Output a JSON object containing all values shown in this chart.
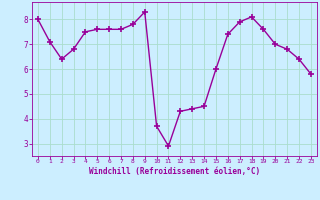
{
  "x": [
    0,
    1,
    2,
    3,
    4,
    5,
    6,
    7,
    8,
    9,
    10,
    11,
    12,
    13,
    14,
    15,
    16,
    17,
    18,
    19,
    20,
    21,
    22,
    23
  ],
  "y": [
    8.0,
    7.1,
    6.4,
    6.8,
    7.5,
    7.6,
    7.6,
    7.6,
    7.8,
    8.3,
    3.7,
    2.9,
    4.3,
    4.4,
    4.5,
    6.0,
    7.4,
    7.9,
    8.1,
    7.6,
    7.0,
    6.8,
    6.4,
    5.8
  ],
  "line_color": "#990099",
  "marker": "+",
  "markersize": 4,
  "linewidth": 1.0,
  "bg_color": "#cceeff",
  "grid_color": "#aaddcc",
  "xlabel": "Windchill (Refroidissement éolien,°C)",
  "xlabel_color": "#990099",
  "tick_color": "#990099",
  "xlim": [
    -0.5,
    23.5
  ],
  "ylim": [
    2.5,
    8.7
  ],
  "yticks": [
    3,
    4,
    5,
    6,
    7,
    8
  ],
  "xticks": [
    0,
    1,
    2,
    3,
    4,
    5,
    6,
    7,
    8,
    9,
    10,
    11,
    12,
    13,
    14,
    15,
    16,
    17,
    18,
    19,
    20,
    21,
    22,
    23
  ]
}
